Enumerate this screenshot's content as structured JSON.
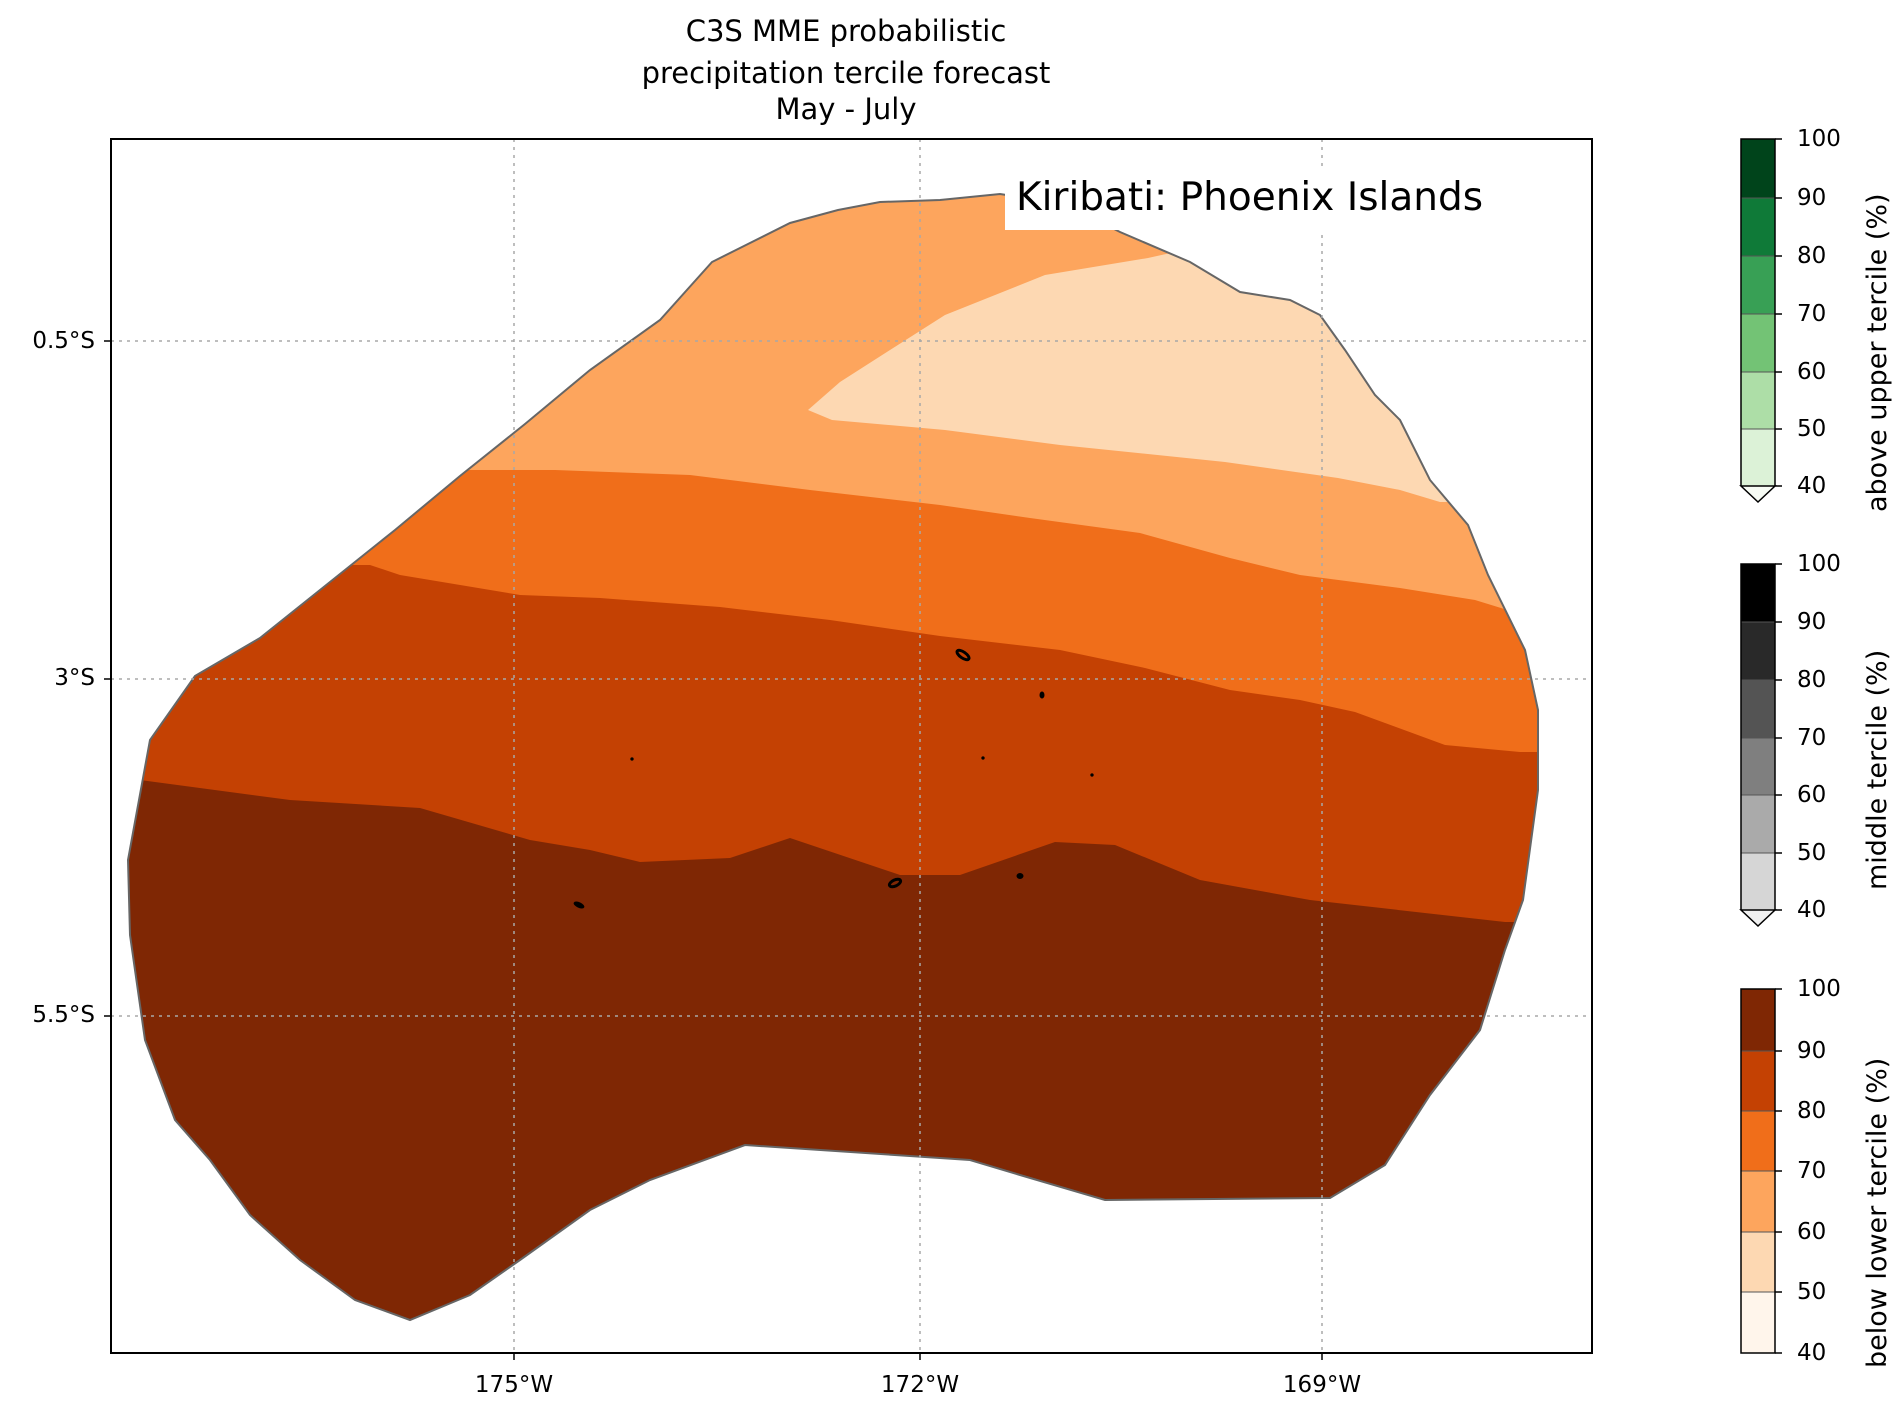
{
  "title": {
    "line1": "C3S MME probabilistic",
    "line2": "precipitation tercile forecast",
    "line3": "May - July"
  },
  "region_label": "Kiribati: Phoenix Islands",
  "axes": {
    "y_ticks": [
      "0.5°S",
      "3°S",
      "5.5°S"
    ],
    "x_ticks": [
      "175°W",
      "172°W",
      "169°W"
    ],
    "lat_range": [
      "1.0°N",
      "8.5°S"
    ],
    "lon_range": [
      "178°W",
      "167°W"
    ],
    "gridlines": "dotted"
  },
  "colorbars": [
    {
      "label": "above upper tercile (%)",
      "ticks": [
        "100",
        "90",
        "80",
        "70",
        "60",
        "50",
        "40"
      ],
      "colors": [
        "#00441b",
        "#0f7a38",
        "#38a055",
        "#73c375",
        "#addea7",
        "#dcf2d7"
      ],
      "extend": "min"
    },
    {
      "label": "middle tercile (%)",
      "ticks": [
        "100",
        "90",
        "80",
        "70",
        "60",
        "50",
        "40"
      ],
      "colors": [
        "#000000",
        "#292929",
        "#545454",
        "#7f7f7f",
        "#aaaaaa",
        "#d6d6d6"
      ],
      "extend": "min"
    },
    {
      "label": "below lower tercile (%)",
      "ticks": [
        "100",
        "90",
        "80",
        "70",
        "60",
        "50",
        "40"
      ],
      "colors": [
        "#7f2704",
        "#c44103",
        "#f06e1a",
        "#fda55d",
        "#fdd8b2",
        "#fff5eb"
      ],
      "extend": "none"
    }
  ],
  "map_fill": {
    "category": "below lower tercile",
    "bands": [
      {
        "range": "50-60",
        "color": "#fdd8b2"
      },
      {
        "range": "60-70",
        "color": "#fda55d"
      },
      {
        "range": "70-80",
        "color": "#f06e1a"
      },
      {
        "range": "80-90",
        "color": "#c44103"
      },
      {
        "range": "90-100",
        "color": "#7f2704"
      }
    ]
  }
}
